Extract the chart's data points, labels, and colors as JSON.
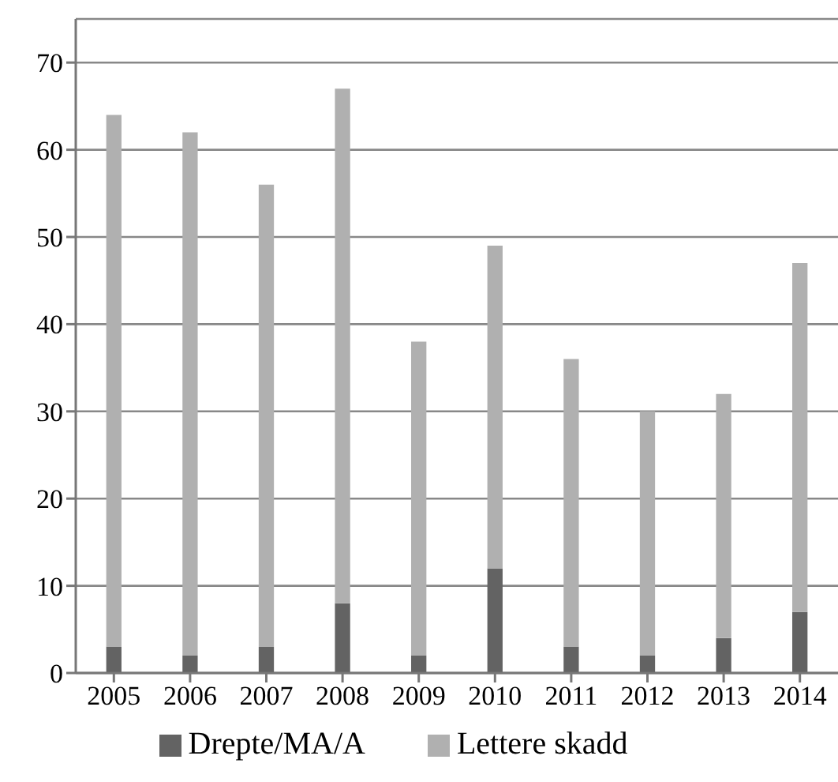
{
  "chart_data": {
    "type": "bar",
    "stacked": true,
    "categories": [
      "2005",
      "2006",
      "2007",
      "2008",
      "2009",
      "2010",
      "2011",
      "2012",
      "2013",
      "2014"
    ],
    "series": [
      {
        "name": "Drepte/MA/A",
        "color": "#636363",
        "values": [
          3,
          2,
          3,
          8,
          2,
          12,
          3,
          2,
          4,
          7
        ]
      },
      {
        "name": "Lettere skadd",
        "color": "#b0b0b0",
        "values": [
          61,
          60,
          53,
          59,
          36,
          37,
          33,
          28,
          28,
          40
        ]
      }
    ],
    "ylim": [
      0,
      75
    ],
    "yticks": [
      0,
      10,
      20,
      30,
      40,
      50,
      60,
      70
    ],
    "grid": "y",
    "legend": "bottom"
  }
}
